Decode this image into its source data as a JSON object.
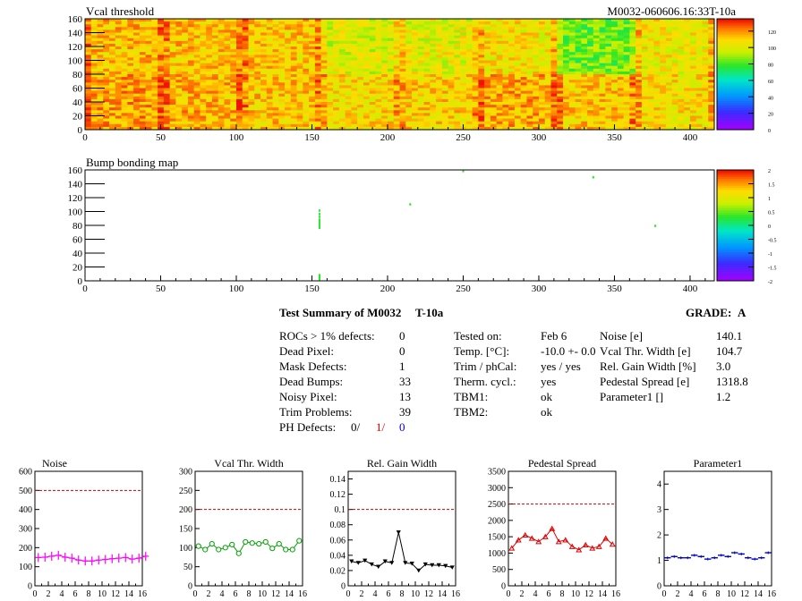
{
  "header": {
    "heatmap_title": "Vcal threshold",
    "module_id": "M0032-060606.16:33T-10a",
    "bump_title": "Bump bonding map"
  },
  "colors": {
    "hot": "#ff5000",
    "warm": "#ffd000",
    "pink": "#ff00ff",
    "green": "#00a000",
    "black": "#000000",
    "red": "#e00000",
    "blue": "#0000cc",
    "ref_dashed": "#cc0000"
  },
  "chart_data": [
    {
      "type": "heatmap",
      "title": "Vcal threshold",
      "x_range": [
        0,
        416
      ],
      "y_range": [
        0,
        160
      ],
      "x_ticks": [
        "0",
        "50",
        "100",
        "150",
        "200",
        "250",
        "300",
        "350",
        "400"
      ],
      "y_ticks": [
        "0",
        "20",
        "40",
        "60",
        "80",
        "100",
        "120",
        "140",
        "160"
      ],
      "roc_mean_values": [
        [
          118,
          115,
          112,
          108,
          110,
          116,
          112,
          107
        ],
        [
          114,
          113,
          112,
          100,
          102,
          106,
          85,
          104
        ]
      ],
      "scale_ticks": [
        "0",
        "20",
        "40",
        "60",
        "80",
        "100",
        "120"
      ],
      "scale_range": [
        0,
        135
      ]
    },
    {
      "type": "heatmap",
      "title": "Bump bonding map",
      "x_range": [
        0,
        416
      ],
      "y_range": [
        0,
        160
      ],
      "x_ticks": [
        "0",
        "50",
        "100",
        "150",
        "200",
        "250",
        "300",
        "350",
        "400"
      ],
      "y_ticks": [
        "0",
        "20",
        "40",
        "60",
        "80",
        "100",
        "120",
        "140",
        "160"
      ],
      "scale_ticks": [
        "-2",
        "-1.5",
        "-1",
        "-0.5",
        "0",
        "0.5",
        "1",
        "1.5",
        "2"
      ],
      "scale_range": [
        -2,
        2
      ],
      "points": [
        {
          "x": 155,
          "y": 2
        },
        {
          "x": 155,
          "y": 4
        },
        {
          "x": 155,
          "y": 6
        },
        {
          "x": 155,
          "y": 8
        },
        {
          "x": 155,
          "y": 76
        },
        {
          "x": 155,
          "y": 79
        },
        {
          "x": 155,
          "y": 82
        },
        {
          "x": 155,
          "y": 85
        },
        {
          "x": 155,
          "y": 88
        },
        {
          "x": 155,
          "y": 92
        },
        {
          "x": 155,
          "y": 96
        },
        {
          "x": 155,
          "y": 101
        },
        {
          "x": 215,
          "y": 110
        },
        {
          "x": 250,
          "y": 158
        },
        {
          "x": 336,
          "y": 149
        },
        {
          "x": 377,
          "y": 79
        }
      ]
    },
    {
      "type": "line",
      "title": "Noise",
      "x_range": [
        0,
        16
      ],
      "y_range": [
        0,
        600
      ],
      "x_ticks": [
        "0",
        "2",
        "4",
        "6",
        "8",
        "10",
        "12",
        "14",
        "16"
      ],
      "y_ticks": [
        "0",
        "100",
        "200",
        "300",
        "400",
        "500",
        "600"
      ],
      "reference": 500,
      "marker": "cross",
      "series": [
        {
          "values": [
            148,
            150,
            155,
            160,
            150,
            145,
            135,
            130,
            130,
            135,
            138,
            142,
            145,
            148,
            140,
            145,
            155
          ]
        }
      ]
    },
    {
      "type": "line",
      "title": "Vcal Thr. Width",
      "x_range": [
        0,
        16
      ],
      "y_range": [
        0,
        300
      ],
      "x_ticks": [
        "0",
        "2",
        "4",
        "6",
        "8",
        "10",
        "12",
        "14",
        "16"
      ],
      "y_ticks": [
        "0",
        "50",
        "100",
        "150",
        "200",
        "250",
        "300"
      ],
      "reference": 200,
      "marker": "circle",
      "series": [
        {
          "values": [
            104,
            95,
            110,
            95,
            100,
            108,
            85,
            115,
            112,
            110,
            115,
            98,
            110,
            95,
            95,
            118
          ]
        }
      ]
    },
    {
      "type": "line",
      "title": "Rel. Gain Width",
      "x_range": [
        0,
        16
      ],
      "y_range": [
        0,
        0.15
      ],
      "x_ticks": [
        "0",
        "2",
        "4",
        "6",
        "8",
        "10",
        "12",
        "14",
        "16"
      ],
      "y_ticks": [
        "0",
        "0.02",
        "0.04",
        "0.06",
        "0.08",
        "0.1",
        "0.12",
        "0.14"
      ],
      "reference": 0.1,
      "marker": "triangle-down",
      "series": [
        {
          "values": [
            0.032,
            0.03,
            0.033,
            0.028,
            0.025,
            0.032,
            0.03,
            0.07,
            0.03,
            0.029,
            0.02,
            0.028,
            0.027,
            0.027,
            0.026,
            0.024
          ]
        }
      ]
    },
    {
      "type": "line",
      "title": "Pedestal Spread",
      "x_range": [
        0,
        16
      ],
      "y_range": [
        0,
        3500
      ],
      "x_ticks": [
        "0",
        "2",
        "4",
        "6",
        "8",
        "10",
        "12",
        "14",
        "16"
      ],
      "y_ticks": [
        "0",
        "500",
        "1000",
        "1500",
        "2000",
        "2500",
        "3000",
        "3500"
      ],
      "reference": 2500,
      "marker": "triangle-up",
      "series": [
        {
          "values": [
            1150,
            1400,
            1550,
            1450,
            1350,
            1500,
            1750,
            1350,
            1400,
            1200,
            1100,
            1250,
            1150,
            1200,
            1450,
            1270
          ]
        }
      ]
    },
    {
      "type": "line",
      "title": "Parameter1",
      "x_range": [
        0,
        16
      ],
      "y_range": [
        0,
        4.5
      ],
      "x_ticks": [
        "0",
        "2",
        "4",
        "6",
        "8",
        "10",
        "12",
        "14",
        "16"
      ],
      "y_ticks": [
        "0",
        "1",
        "2",
        "3",
        "4"
      ],
      "reference": null,
      "marker": "hbar",
      "series": [
        {
          "values": [
            1.1,
            1.15,
            1.1,
            1.1,
            1.2,
            1.15,
            1.05,
            1.1,
            1.2,
            1.15,
            1.3,
            1.25,
            1.1,
            1.05,
            1.1,
            1.3
          ]
        }
      ]
    }
  ],
  "summary": {
    "title": "Test Summary of M0032",
    "subtitle": "T-10a",
    "grade_label": "GRADE:",
    "grade_value": "A",
    "col1": [
      {
        "label": "ROCs > 1% defects:",
        "value": "0"
      },
      {
        "label": "Dead Pixel:",
        "value": "0"
      },
      {
        "label": "Mask Defects:",
        "value": "1"
      },
      {
        "label": "Dead Bumps:",
        "value": "33"
      },
      {
        "label": "Noisy Pixel:",
        "value": "13"
      },
      {
        "label": "Trim Problems:",
        "value": "39"
      }
    ],
    "ph_defects": {
      "label": "PH Defects:",
      "v1": "0/",
      "v2": "1/",
      "v3": "0"
    },
    "col2": [
      {
        "label": "Tested on:",
        "value": "Feb 6"
      },
      {
        "label": "Temp. [°C]:",
        "value": "-10.0 +- 0.0"
      },
      {
        "label": "Trim / phCal:",
        "value": "yes / yes"
      },
      {
        "label": "Therm. cycl.:",
        "value": "yes"
      },
      {
        "label": "TBM1:",
        "value": "ok"
      },
      {
        "label": "TBM2:",
        "value": "ok"
      }
    ],
    "col3": [
      {
        "label": "Noise [e]",
        "value": "140.1"
      },
      {
        "label": "Vcal Thr. Width [e]",
        "value": "104.7"
      },
      {
        "label": "Rel. Gain Width [%]",
        "value": "3.0"
      },
      {
        "label": "Pedestal Spread [e]",
        "value": "1318.8"
      },
      {
        "label": "Parameter1 []",
        "value": "1.2"
      }
    ]
  }
}
